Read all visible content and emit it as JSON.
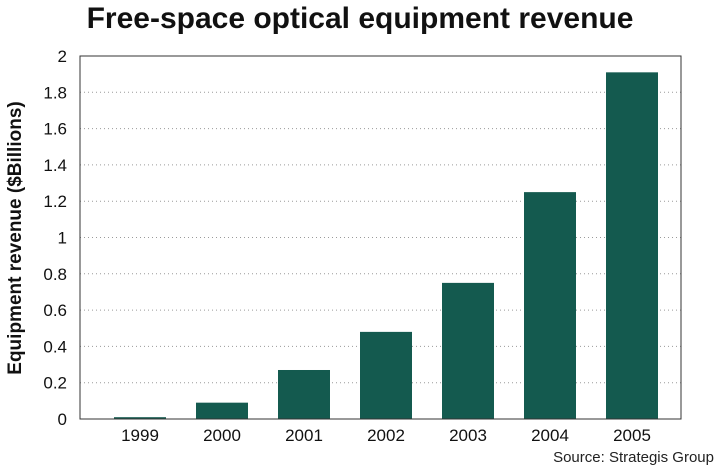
{
  "title": "Free-space optical equipment revenue",
  "source": "Source: Strategis Group",
  "colors": {
    "bar": "#145a4f",
    "grid": "#9a9a9a",
    "axis": "#333333"
  },
  "chart_data": {
    "type": "bar",
    "title": "Free-space optical equipment revenue",
    "xlabel": "",
    "ylabel": "Equipment revenue ($Billions)",
    "categories": [
      "1999",
      "2000",
      "2001",
      "2002",
      "2003",
      "2004",
      "2005"
    ],
    "values": [
      0.01,
      0.09,
      0.27,
      0.48,
      0.75,
      1.25,
      1.91
    ],
    "ylim": [
      0,
      2
    ],
    "yticks": [
      "0",
      "0.2",
      "0.4",
      "0.6",
      "0.8",
      "1",
      "1.2",
      "1.4",
      "1.6",
      "1.8",
      "2"
    ],
    "grid": true,
    "legend": "none"
  }
}
